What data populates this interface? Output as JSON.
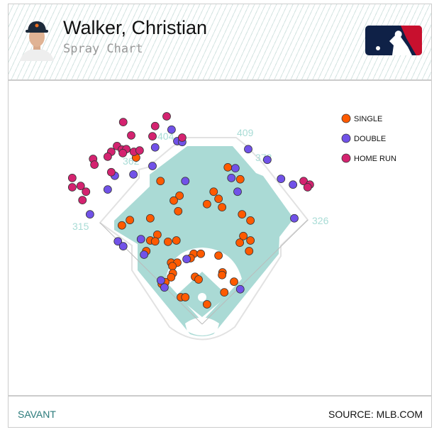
{
  "header": {
    "player_name": "Walker, Christian",
    "subtitle": "Spray Chart"
  },
  "footer": {
    "left_link": "SAVANT",
    "source": "SOURCE: MLB.COM"
  },
  "chart_data": {
    "type": "scatter",
    "units": "ft",
    "fence_distances": [
      {
        "label": "315"
      },
      {
        "label": "362"
      },
      {
        "label": "404"
      },
      {
        "label": "409"
      },
      {
        "label": "373"
      },
      {
        "label": "326"
      }
    ],
    "legend": "top-right",
    "colors": {
      "SINGLE": "#ff5a00",
      "DOUBLE": "#7152e8",
      "HOME RUN": "#d42370",
      "grass": "#aadad5"
    },
    "series": [
      {
        "name": "SINGLE",
        "points": [
          [
            -149,
            379
          ],
          [
            58,
            357
          ],
          [
            86,
            330
          ],
          [
            -94,
            326
          ],
          [
            26,
            302
          ],
          [
            -51,
            293
          ],
          [
            -64,
            282
          ],
          [
            37,
            286
          ],
          [
            11,
            274
          ],
          [
            45,
            267
          ],
          [
            -54,
            258
          ],
          [
            90,
            251
          ],
          [
            109,
            237
          ],
          [
            -117,
            242
          ],
          [
            -163,
            238
          ],
          [
            -181,
            226
          ],
          [
            -101,
            205
          ],
          [
            -117,
            192
          ],
          [
            -106,
            190
          ],
          [
            -77,
            189
          ],
          [
            -58,
            192
          ],
          [
            93,
            202
          ],
          [
            109,
            192
          ],
          [
            85,
            187
          ],
          [
            106,
            168
          ],
          [
            -126,
            168
          ],
          [
            -19,
            162
          ],
          [
            -3,
            162
          ],
          [
            -26,
            152
          ],
          [
            37,
            158
          ],
          [
            -70,
            142
          ],
          [
            -56,
            142
          ],
          [
            -67,
            134
          ],
          [
            -66,
            118
          ],
          [
            -70,
            109
          ],
          [
            -16,
            110
          ],
          [
            -8,
            104
          ],
          [
            46,
            120
          ],
          [
            45,
            114
          ],
          [
            72,
            99
          ],
          [
            -91,
            94
          ],
          [
            -83,
            98
          ],
          [
            50,
            75
          ],
          [
            -48,
            64
          ],
          [
            -38,
            64
          ],
          [
            11,
            48
          ]
        ]
      },
      {
        "name": "DOUBLE",
        "points": [
          [
            -69,
            442
          ],
          [
            -56,
            416
          ],
          [
            -45,
            414
          ],
          [
            -106,
            402
          ],
          [
            -112,
            360
          ],
          [
            -155,
            341
          ],
          [
            -197,
            338
          ],
          [
            -213,
            307
          ],
          [
            -253,
            251
          ],
          [
            104,
            398
          ],
          [
            147,
            374
          ],
          [
            75,
            355
          ],
          [
            66,
            333
          ],
          [
            -38,
            326
          ],
          [
            80,
            302
          ],
          [
            178,
            331
          ],
          [
            205,
            318
          ],
          [
            208,
            242
          ],
          [
            -138,
            195
          ],
          [
            -190,
            190
          ],
          [
            -178,
            179
          ],
          [
            -131,
            160
          ],
          [
            -35,
            150
          ],
          [
            -93,
            102
          ],
          [
            -85,
            86
          ],
          [
            86,
            82
          ]
        ]
      },
      {
        "name": "HOME RUN",
        "points": [
          [
            -80,
            472
          ],
          [
            -178,
            459
          ],
          [
            -106,
            450
          ],
          [
            -160,
            429
          ],
          [
            -112,
            427
          ],
          [
            -45,
            424
          ],
          [
            -192,
            405
          ],
          [
            -205,
            392
          ],
          [
            -181,
            397
          ],
          [
            -171,
            398
          ],
          [
            -179,
            389
          ],
          [
            -154,
            392
          ],
          [
            -141,
            395
          ],
          [
            -213,
            381
          ],
          [
            -246,
            376
          ],
          [
            -243,
            363
          ],
          [
            -205,
            346
          ],
          [
            -293,
            333
          ],
          [
            -293,
            312
          ],
          [
            -274,
            315
          ],
          [
            -262,
            302
          ],
          [
            -270,
            283
          ],
          [
            229,
            326
          ],
          [
            243,
            318
          ],
          [
            238,
            312
          ]
        ]
      }
    ]
  }
}
